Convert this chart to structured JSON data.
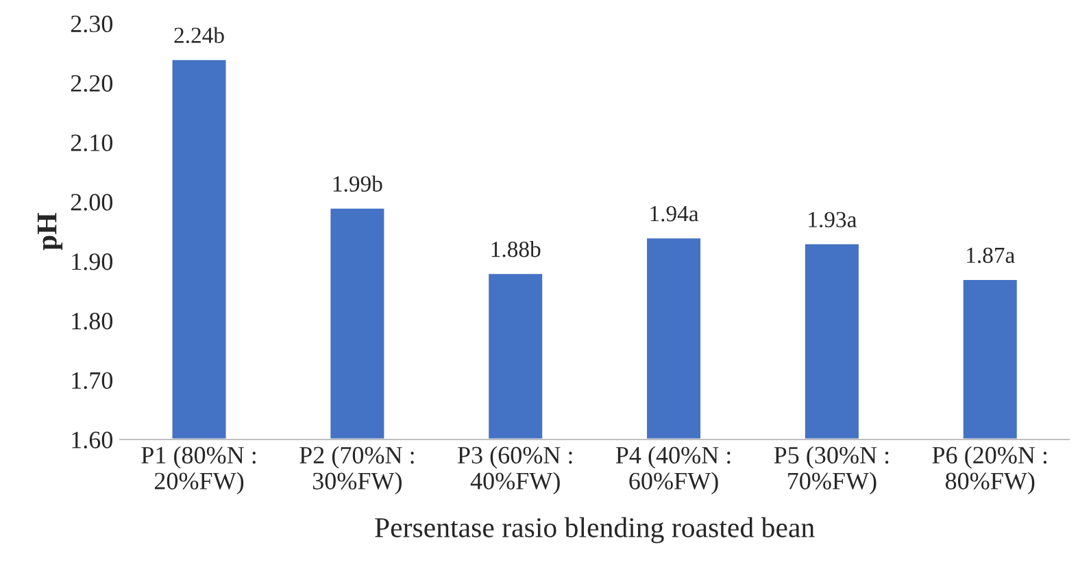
{
  "chart_data": {
    "type": "bar",
    "xlabel": "Persentase rasio blending roasted bean",
    "ylabel": "pH",
    "categories": [
      "P1 (80%N :\n20%FW)",
      "P2 (70%N :\n30%FW)",
      "P3 (60%N :\n40%FW)",
      "P4 (40%N :\n60%FW)",
      "P5 (30%N :\n70%FW)",
      "P6 (20%N :\n80%FW)"
    ],
    "values": [
      2.24,
      1.99,
      1.88,
      1.94,
      1.93,
      1.87
    ],
    "value_labels": [
      "2.24b",
      "1.99b",
      "1.88b",
      "1.94a",
      "1.93a",
      "1.87a"
    ],
    "color": "#4472c4",
    "ylim": [
      1.6,
      2.3
    ],
    "yticks": [
      {
        "value": 1.6,
        "label": "1.60"
      },
      {
        "value": 1.7,
        "label": "1.70"
      },
      {
        "value": 1.8,
        "label": "1.80"
      },
      {
        "value": 1.9,
        "label": "1.90"
      },
      {
        "value": 2.0,
        "label": "2.00"
      },
      {
        "value": 2.1,
        "label": "2.10"
      },
      {
        "value": 2.2,
        "label": "2.20"
      },
      {
        "value": 2.3,
        "label": "2.30"
      }
    ],
    "grid": false
  }
}
